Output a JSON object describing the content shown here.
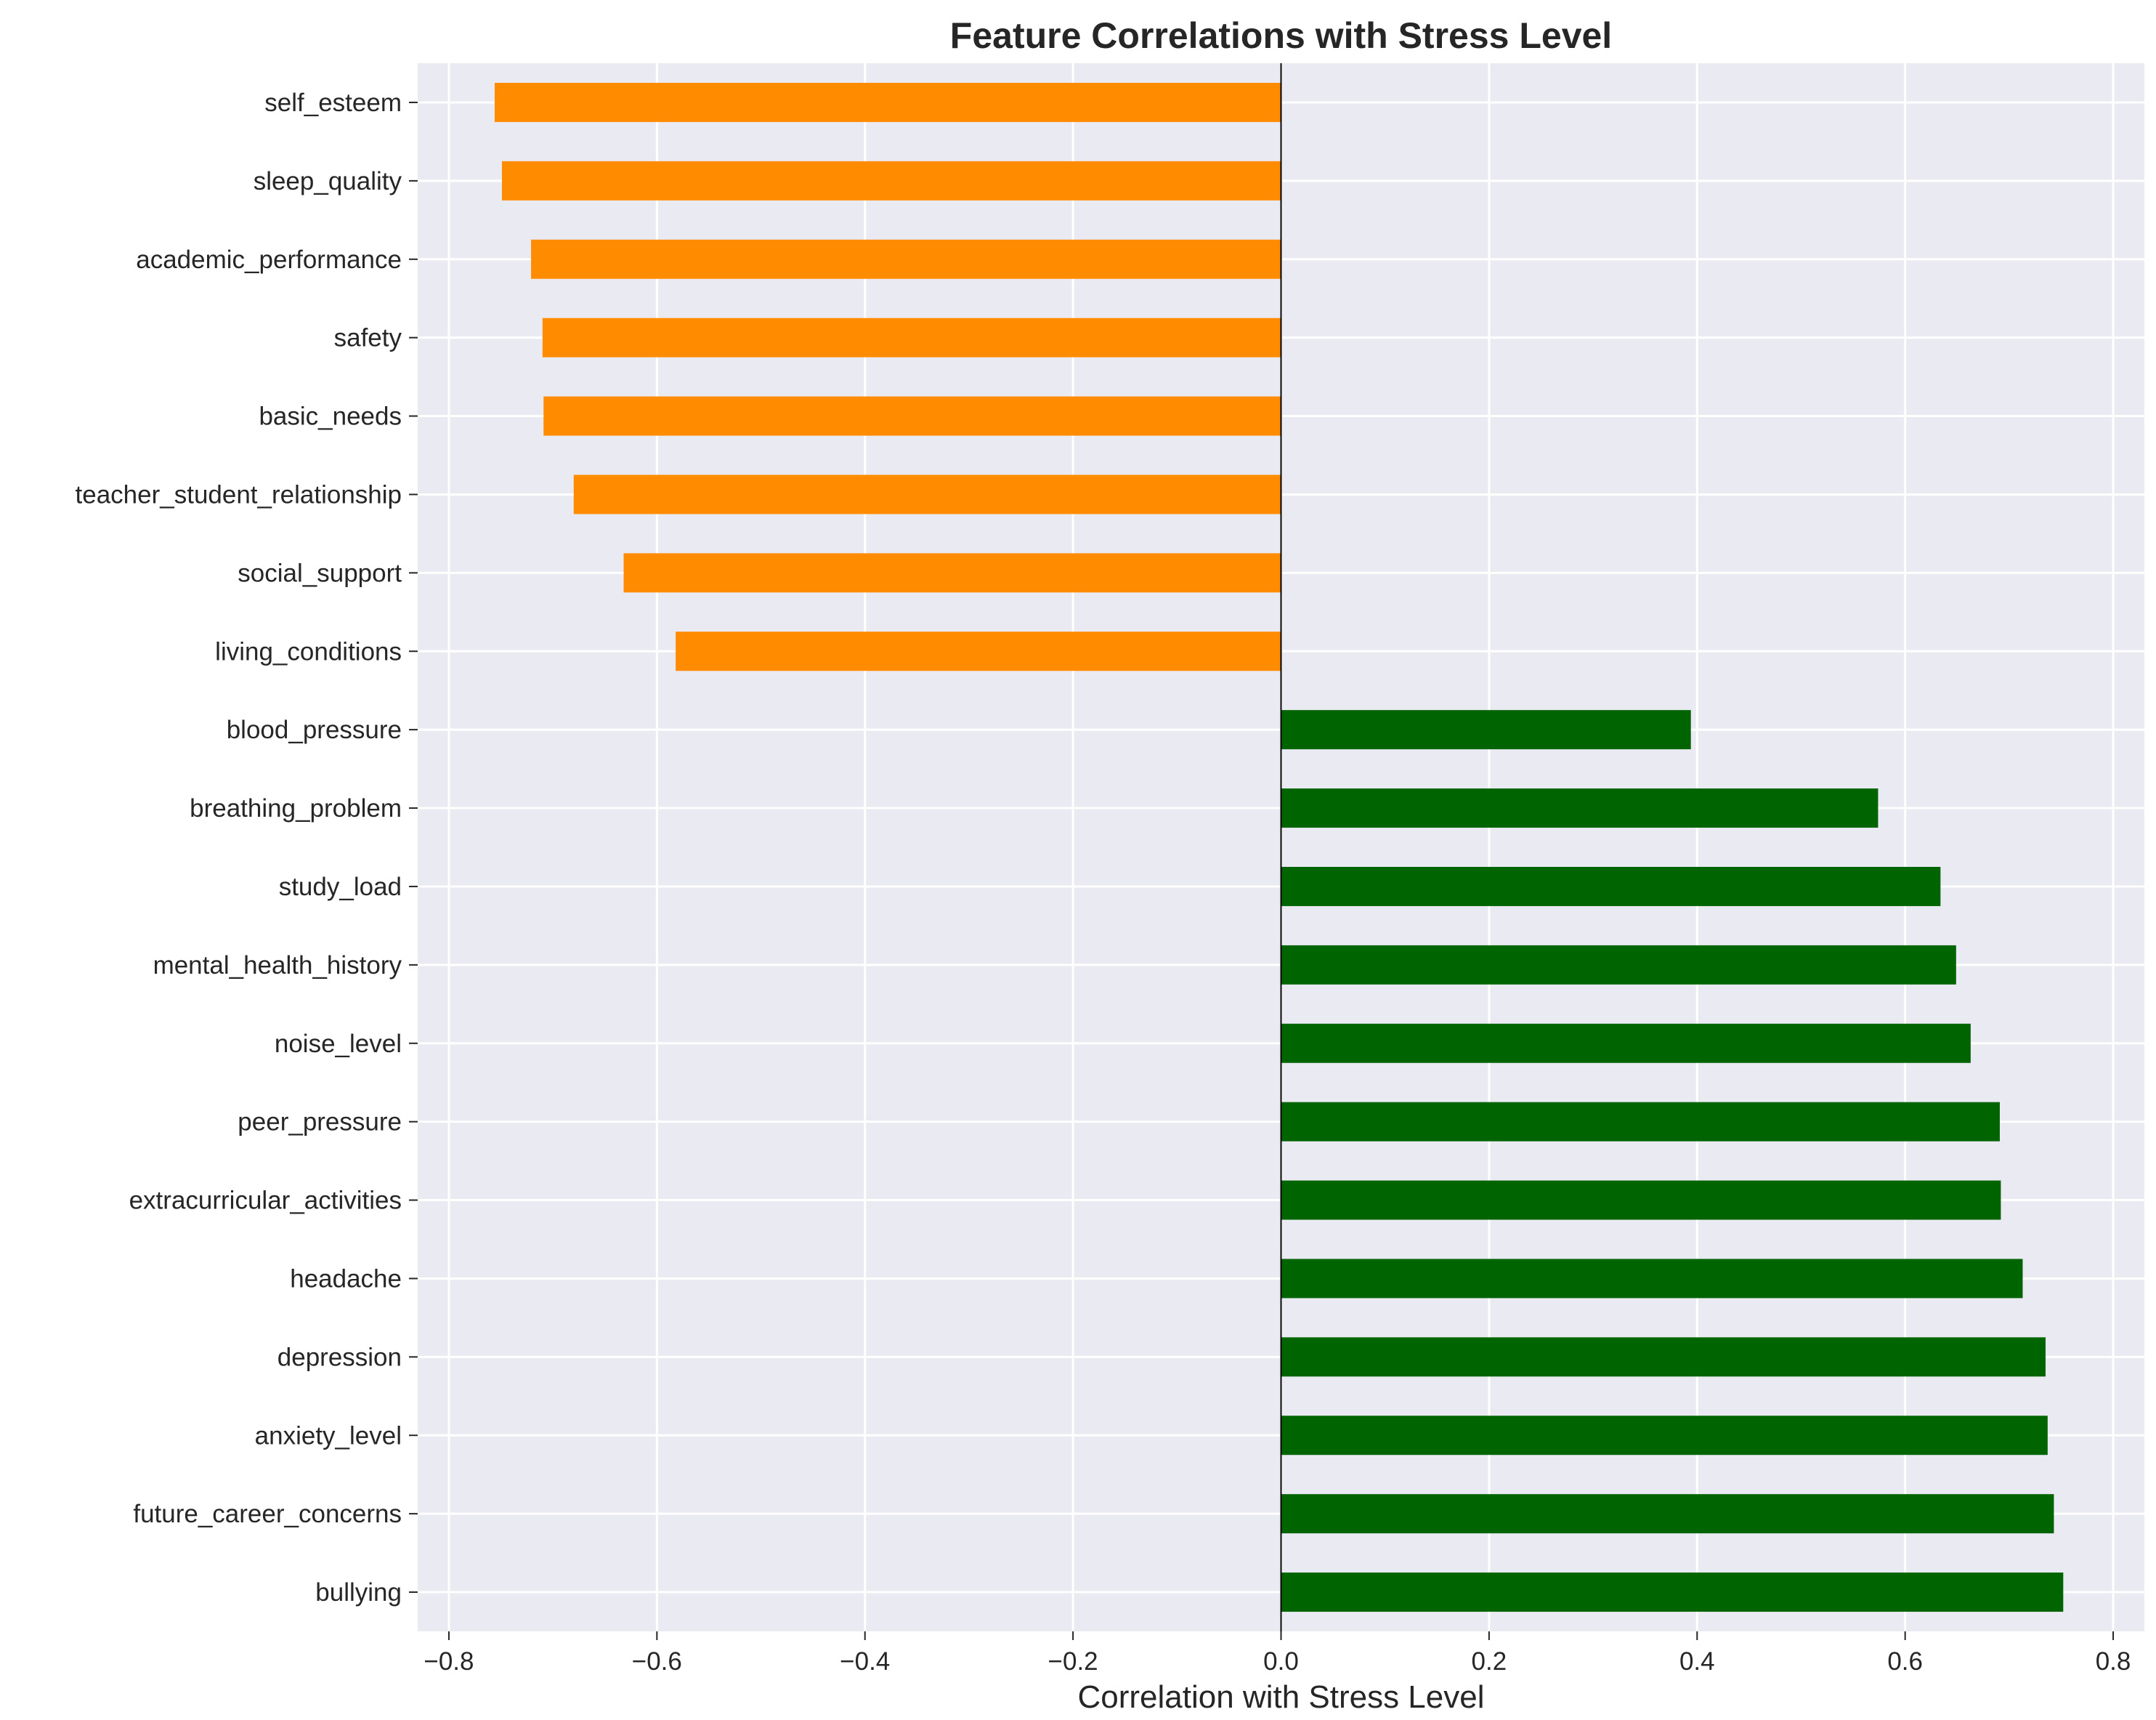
{
  "chart_data": {
    "type": "bar",
    "orientation": "horizontal",
    "title": "Feature Correlations with Stress Level",
    "xlabel": "Correlation with Stress Level",
    "ylabel": "",
    "xlim": [
      -0.83,
      0.83
    ],
    "xticks": [
      -0.8,
      -0.6,
      -0.4,
      -0.2,
      0.0,
      0.2,
      0.4,
      0.6,
      0.8
    ],
    "xtick_labels": [
      "−0.8",
      "−0.6",
      "−0.4",
      "−0.2",
      "0.0",
      "0.2",
      "0.4",
      "0.6",
      "0.8"
    ],
    "grid": true,
    "legend": "none",
    "colors": {
      "negative": "#ff8c00",
      "positive": "#006400",
      "background": "#eaeaf2",
      "grid": "#ffffff",
      "zero_line": "#000000",
      "text": "#262626"
    },
    "categories": [
      "self_esteem",
      "sleep_quality",
      "academic_performance",
      "safety",
      "basic_needs",
      "teacher_student_relationship",
      "social_support",
      "living_conditions",
      "blood_pressure",
      "breathing_problem",
      "study_load",
      "mental_health_history",
      "noise_level",
      "peer_pressure",
      "extracurricular_activities",
      "headache",
      "depression",
      "anxiety_level",
      "future_career_concerns",
      "bullying"
    ],
    "values": [
      -0.756,
      -0.749,
      -0.721,
      -0.71,
      -0.709,
      -0.68,
      -0.632,
      -0.582,
      0.394,
      0.574,
      0.634,
      0.649,
      0.663,
      0.691,
      0.692,
      0.713,
      0.735,
      0.737,
      0.743,
      0.752
    ]
  }
}
